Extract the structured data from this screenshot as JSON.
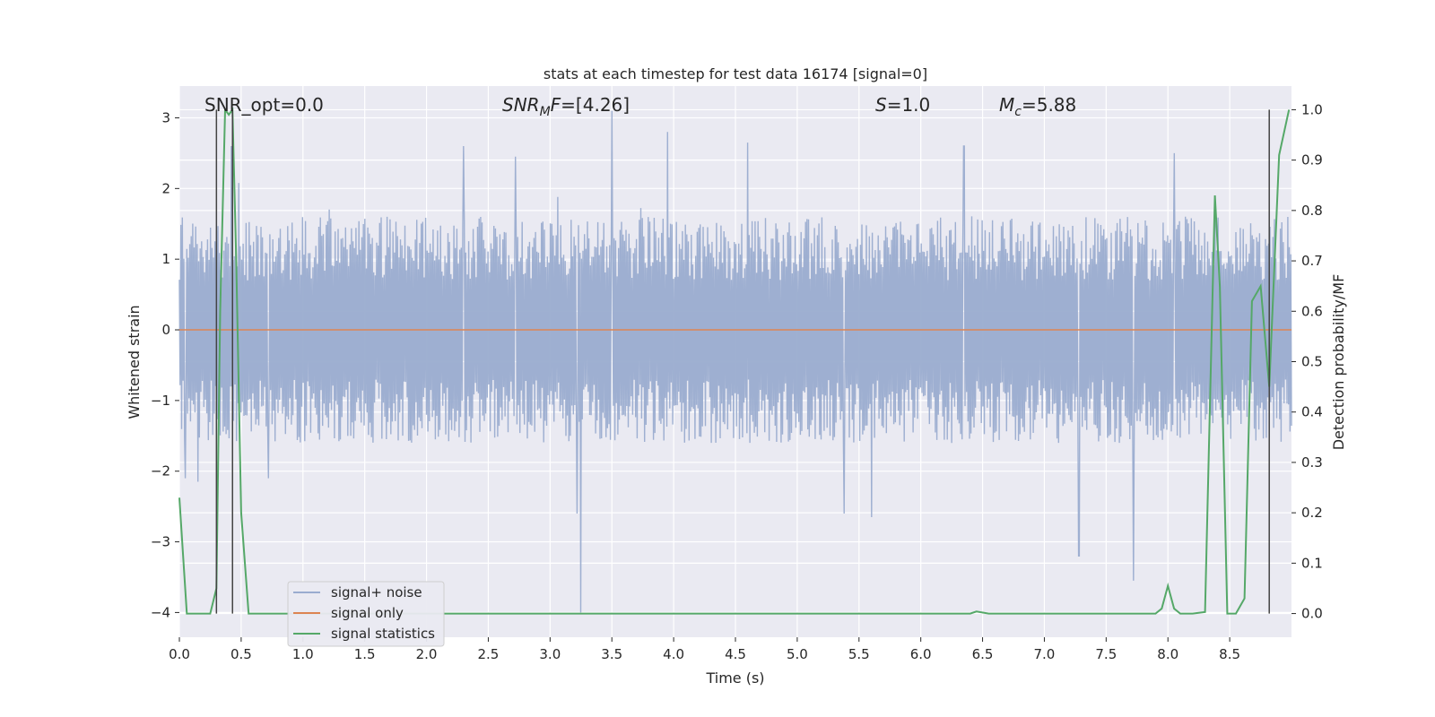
{
  "chart_data": {
    "type": "line",
    "title": "stats at each timestep for test data 16174 [signal=0]",
    "xlabel": "Time (s)",
    "ylabel": "Whitened strain",
    "ylabel_right": "Detection probability/MF",
    "xlim": [
      0.0,
      9.0
    ],
    "ylim": [
      -4.35,
      3.45
    ],
    "ylim_right": [
      -0.047,
      1.047
    ],
    "xticks": [
      "0.0",
      "0.5",
      "1.0",
      "1.5",
      "2.0",
      "2.5",
      "3.0",
      "3.5",
      "4.0",
      "4.5",
      "5.0",
      "5.5",
      "6.0",
      "6.5",
      "7.0",
      "7.5",
      "8.0",
      "8.5"
    ],
    "yticks": [
      "3",
      "2",
      "1",
      "0",
      "−1",
      "−2",
      "−3",
      "−4"
    ],
    "yticks_right": [
      "1.0",
      "0.9",
      "0.8",
      "0.7",
      "0.6",
      "0.5",
      "0.4",
      "0.3",
      "0.2",
      "0.1",
      "0.0"
    ],
    "grid": true,
    "legend_position": "lower-left",
    "colors": {
      "noise": "#9aaccf",
      "signal": "#dd8452",
      "stats": "#55a868",
      "vline": "#444444",
      "background": "#eaeaf2"
    },
    "annotations": {
      "snr_opt": "SNR_opt=0.0",
      "snr_mf_label": "SNR",
      "snr_mf_sub": "M",
      "snr_mf_label2": "F",
      "snr_mf_value": "=[4.26]",
      "s_label": "S",
      "s_value": "=1.0",
      "mc_label": "M",
      "mc_sub": "c",
      "mc_value": "=5.88"
    },
    "series": [
      {
        "name": "signal+ noise",
        "axis": "left",
        "description_values": "white noise, envelope approx ±1.6, spikes up to 3.1 and down to -4.0",
        "spikes": [
          [
            0.05,
            -2.1
          ],
          [
            0.15,
            -2.15
          ],
          [
            0.42,
            2.6
          ],
          [
            0.72,
            -2.1
          ],
          [
            2.3,
            2.6
          ],
          [
            2.72,
            2.45
          ],
          [
            3.22,
            -2.6
          ],
          [
            3.25,
            -4.0
          ],
          [
            3.5,
            3.1
          ],
          [
            3.95,
            2.8
          ],
          [
            4.6,
            2.65
          ],
          [
            5.38,
            -2.6
          ],
          [
            5.6,
            -2.65
          ],
          [
            6.35,
            2.6
          ],
          [
            7.28,
            -3.2
          ],
          [
            7.72,
            -3.55
          ],
          [
            8.05,
            2.5
          ]
        ]
      },
      {
        "name": "signal only",
        "axis": "left",
        "x": [
          0.0,
          9.0
        ],
        "y": [
          0.0,
          0.0
        ]
      },
      {
        "name": "signal statistics",
        "axis": "right",
        "x": [
          0.0,
          0.06,
          0.12,
          0.18,
          0.25,
          0.3,
          0.33,
          0.37,
          0.4,
          0.43,
          0.46,
          0.5,
          0.56,
          0.62,
          1.0,
          2.0,
          3.0,
          4.0,
          5.0,
          6.0,
          6.3,
          6.4,
          6.45,
          6.55,
          6.8,
          7.2,
          7.6,
          7.9,
          7.95,
          8.0,
          8.05,
          8.1,
          8.2,
          8.3,
          8.38,
          8.42,
          8.48,
          8.55,
          8.62,
          8.68,
          8.75,
          8.82,
          8.9,
          8.98
        ],
        "y": [
          0.23,
          0.0,
          0.0,
          0.0,
          0.0,
          0.05,
          0.6,
          1.0,
          0.99,
          1.0,
          0.7,
          0.2,
          0.0,
          0.0,
          0.0,
          0.0,
          0.0,
          0.0,
          0.0,
          0.0,
          0.0,
          0.0,
          0.004,
          0.0,
          0.0,
          0.0,
          0.0,
          0.0,
          0.01,
          0.055,
          0.01,
          0.0,
          0.0,
          0.003,
          0.83,
          0.65,
          0.0,
          0.0,
          0.03,
          0.62,
          0.65,
          0.45,
          0.91,
          1.0
        ]
      }
    ],
    "vlines": [
      0.3,
      0.43,
      8.82
    ]
  }
}
